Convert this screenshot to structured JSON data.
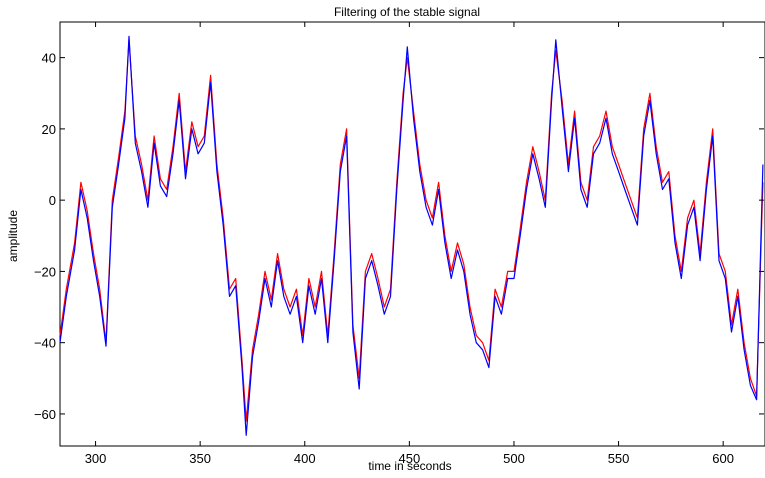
{
  "chart_data": {
    "type": "line",
    "title": "Filtering of the stable signal",
    "xlabel": "time in seconds",
    "ylabel": "amplitude",
    "xlim": [
      283,
      620
    ],
    "ylim": [
      -69,
      50
    ],
    "xticks": [
      300,
      350,
      400,
      450,
      500,
      550,
      600
    ],
    "yticks": [
      -60,
      -40,
      -20,
      0,
      20,
      40
    ],
    "grid": false,
    "legend": "none",
    "series": [
      {
        "color": "#ff0000",
        "x": [
          283,
          286,
          290,
          293,
          296,
          299,
          302,
          305,
          308,
          311,
          314,
          316,
          319,
          322,
          325,
          328,
          331,
          334,
          337,
          340,
          343,
          346,
          349,
          352,
          355,
          358,
          361,
          364,
          367,
          370,
          372,
          375,
          378,
          381,
          384,
          387,
          390,
          393,
          396,
          399,
          402,
          405,
          408,
          411,
          414,
          417,
          420,
          423,
          426,
          429,
          432,
          435,
          438,
          441,
          444,
          447,
          449,
          452,
          455,
          458,
          461,
          464,
          467,
          470,
          473,
          476,
          479,
          482,
          485,
          488,
          491,
          494,
          497,
          500,
          503,
          506,
          509,
          512,
          515,
          518,
          520,
          523,
          526,
          529,
          532,
          535,
          538,
          541,
          544,
          547,
          550,
          553,
          556,
          559,
          562,
          565,
          568,
          571,
          574,
          577,
          580,
          583,
          586,
          589,
          592,
          595,
          598,
          601,
          604,
          607,
          610,
          613,
          616,
          619
        ],
        "y": [
          -38,
          -25,
          -12,
          5,
          -3,
          -15,
          -25,
          -40,
          0,
          12,
          25,
          45,
          18,
          10,
          0,
          18,
          6,
          3,
          15,
          30,
          8,
          22,
          15,
          18,
          35,
          10,
          -5,
          -25,
          -22,
          -45,
          -62,
          -42,
          -32,
          -20,
          -28,
          -15,
          -25,
          -30,
          -25,
          -38,
          -22,
          -30,
          -20,
          -38,
          -15,
          10,
          20,
          -35,
          -50,
          -20,
          -15,
          -22,
          -30,
          -25,
          5,
          30,
          40,
          25,
          10,
          0,
          -5,
          5,
          -10,
          -20,
          -12,
          -18,
          -30,
          -38,
          -40,
          -45,
          -25,
          -30,
          -20,
          -20,
          -8,
          5,
          15,
          8,
          0,
          30,
          42,
          28,
          10,
          25,
          5,
          0,
          15,
          18,
          25,
          15,
          10,
          5,
          0,
          -5,
          20,
          30,
          15,
          5,
          8,
          -10,
          -20,
          -5,
          0,
          -15,
          5,
          20,
          -15,
          -20,
          -35,
          -25,
          -40,
          -50,
          -55,
          5
        ]
      },
      {
        "color": "#0000ff",
        "x": [
          283,
          286,
          290,
          293,
          296,
          299,
          302,
          305,
          308,
          311,
          314,
          316,
          319,
          322,
          325,
          328,
          331,
          334,
          337,
          340,
          343,
          346,
          349,
          352,
          355,
          358,
          361,
          364,
          367,
          370,
          372,
          375,
          378,
          381,
          384,
          387,
          390,
          393,
          396,
          399,
          402,
          405,
          408,
          411,
          414,
          417,
          420,
          423,
          426,
          429,
          432,
          435,
          438,
          441,
          444,
          447,
          449,
          452,
          455,
          458,
          461,
          464,
          467,
          470,
          473,
          476,
          479,
          482,
          485,
          488,
          491,
          494,
          497,
          500,
          503,
          506,
          509,
          512,
          515,
          518,
          520,
          523,
          526,
          529,
          532,
          535,
          538,
          541,
          544,
          547,
          550,
          553,
          556,
          559,
          562,
          565,
          568,
          571,
          574,
          577,
          580,
          583,
          586,
          589,
          592,
          595,
          598,
          601,
          604,
          607,
          610,
          613,
          616,
          619
        ],
        "y": [
          -40,
          -27,
          -14,
          3,
          -5,
          -17,
          -27,
          -41,
          -2,
          10,
          23,
          46,
          16,
          8,
          -2,
          16,
          4,
          1,
          13,
          28,
          6,
          20,
          13,
          16,
          33,
          8,
          -7,
          -27,
          -24,
          -47,
          -66,
          -44,
          -34,
          -22,
          -30,
          -17,
          -27,
          -32,
          -27,
          -40,
          -24,
          -32,
          -22,
          -40,
          -17,
          8,
          18,
          -37,
          -53,
          -22,
          -17,
          -24,
          -32,
          -27,
          3,
          28,
          43,
          23,
          8,
          -2,
          -7,
          3,
          -12,
          -22,
          -14,
          -20,
          -32,
          -40,
          -42,
          -47,
          -27,
          -32,
          -22,
          -22,
          -10,
          3,
          13,
          6,
          -2,
          28,
          45,
          26,
          8,
          23,
          3,
          -2,
          13,
          16,
          23,
          13,
          8,
          3,
          -2,
          -7,
          18,
          28,
          13,
          3,
          6,
          -12,
          -22,
          -7,
          -2,
          -17,
          3,
          18,
          -17,
          -22,
          -37,
          -27,
          -42,
          -52,
          -56,
          10
        ]
      }
    ]
  }
}
